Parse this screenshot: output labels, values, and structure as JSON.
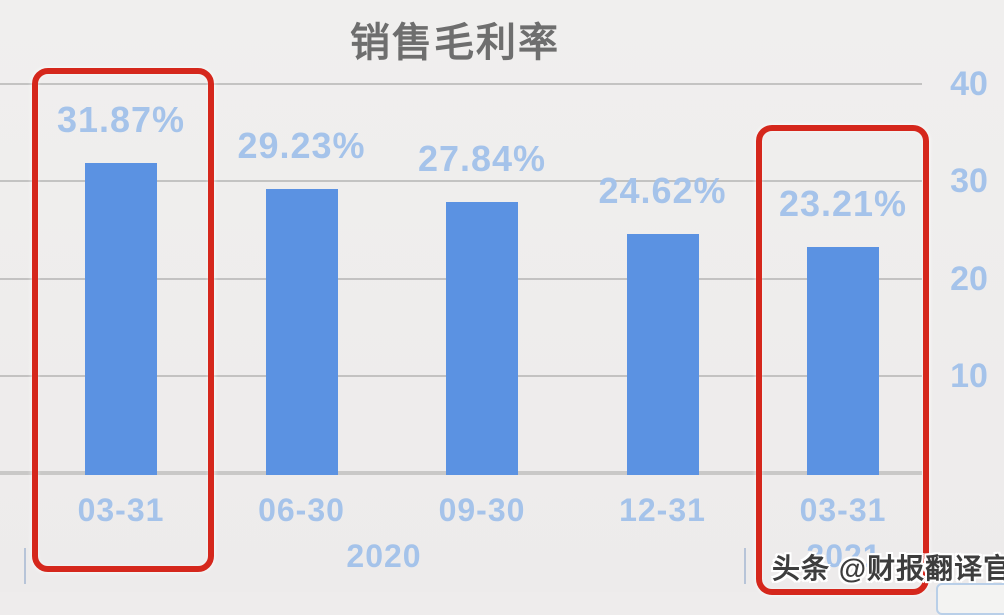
{
  "title": "销售毛利率",
  "watermark": "头条 @财报翻译官",
  "chart_data": {
    "type": "bar",
    "title": "销售毛利率",
    "categories": [
      "03-31",
      "06-30",
      "09-30",
      "12-31",
      "03-31"
    ],
    "group_labels": [
      "2020",
      "2021"
    ],
    "values": [
      31.87,
      29.23,
      27.84,
      24.62,
      23.21
    ],
    "data_labels": [
      "31.87%",
      "29.23%",
      "27.84%",
      "24.62%",
      "23.21%"
    ],
    "xlabel": "",
    "ylabel": "",
    "ylim": [
      0,
      40
    ],
    "yticks": [
      10,
      20,
      30,
      40
    ],
    "ytick_side": "right",
    "grid": true,
    "legend": "none",
    "bar_color": "#5b92e2",
    "label_color": "#a5c3ea",
    "title_color": "#6e6e6e",
    "highlighted_bars": [
      0,
      4
    ],
    "highlight_color": "#d5271c"
  }
}
